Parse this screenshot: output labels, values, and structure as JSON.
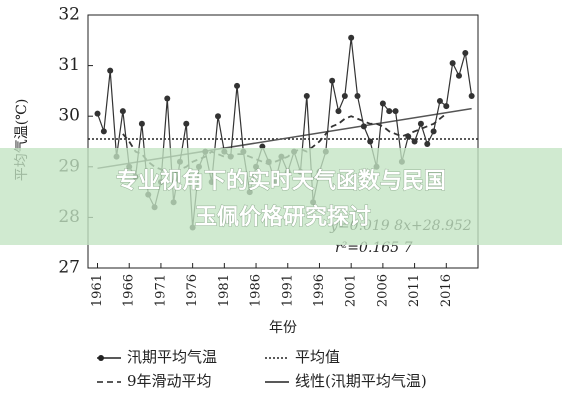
{
  "chart_data": {
    "type": "line",
    "y_label": "平均气温(℃)",
    "x_label": "年份",
    "x": [
      1961,
      1962,
      1963,
      1964,
      1965,
      1966,
      1967,
      1968,
      1969,
      1970,
      1971,
      1972,
      1973,
      1974,
      1975,
      1976,
      1977,
      1978,
      1979,
      1980,
      1981,
      1982,
      1983,
      1984,
      1985,
      1986,
      1987,
      1988,
      1989,
      1990,
      1991,
      1992,
      1993,
      1994,
      1995,
      1996,
      1997,
      1998,
      1999,
      2000,
      2001,
      2002,
      2003,
      2004,
      2005,
      2006,
      2007,
      2008,
      2009,
      2010,
      2011,
      2012,
      2013,
      2014,
      2015,
      2016,
      2017,
      2018,
      2019,
      2020
    ],
    "series": [
      {
        "name": "汛期平均气温",
        "color": "#333333",
        "style": "solid-marker",
        "values": [
          30.05,
          29.7,
          30.9,
          29.2,
          30.1,
          29.0,
          28.8,
          29.85,
          28.45,
          28.2,
          28.7,
          30.35,
          28.3,
          29.1,
          29.85,
          27.8,
          29.0,
          29.3,
          28.7,
          30.0,
          29.3,
          29.2,
          30.6,
          29.3,
          28.5,
          29.0,
          29.4,
          29.1,
          28.7,
          29.2,
          28.9,
          29.3,
          28.9,
          30.4,
          28.3,
          28.9,
          29.3,
          30.7,
          30.1,
          30.4,
          31.55,
          30.4,
          29.8,
          29.5,
          29.0,
          30.25,
          30.1,
          30.1,
          29.1,
          29.6,
          29.5,
          29.85,
          29.45,
          29.7,
          30.3,
          30.2,
          31.05,
          30.8,
          31.25,
          30.4
        ]
      },
      {
        "name": "9年滑动平均",
        "color": "#333333",
        "style": "dashed",
        "values": [
          null,
          null,
          null,
          null,
          29.65,
          29.5,
          29.3,
          29.25,
          29.1,
          29.0,
          28.95,
          28.85,
          28.85,
          28.95,
          29.0,
          29.1,
          29.15,
          29.2,
          29.3,
          29.25,
          29.2,
          29.2,
          29.25,
          29.25,
          29.2,
          29.15,
          29.1,
          29.05,
          29.1,
          29.15,
          29.2,
          29.3,
          29.35,
          29.3,
          29.4,
          29.5,
          29.65,
          29.8,
          29.85,
          29.95,
          30.0,
          29.95,
          29.9,
          29.85,
          29.85,
          29.8,
          29.7,
          29.65,
          29.6,
          29.65,
          29.7,
          29.75,
          29.8,
          29.85,
          29.95,
          30.05,
          null,
          null,
          null,
          null
        ]
      }
    ],
    "mean_line": {
      "name": "平均值",
      "value": 29.55,
      "style": "dotted"
    },
    "trendline": {
      "name": "线性(汛期平均气温)",
      "x": [
        1961,
        2020
      ],
      "values": [
        28.97,
        30.15
      ],
      "style": "solid"
    },
    "annotations": [
      "y=0.019 8x+28.952",
      "r²=0.165 7"
    ],
    "xlim": [
      1959.5,
      2021
    ],
    "xticks": [
      1961,
      1966,
      1971,
      1976,
      1981,
      1986,
      1991,
      1996,
      2001,
      2006,
      2011,
      2016
    ],
    "ylim": [
      27,
      32
    ],
    "yticks": [
      27,
      28,
      29,
      30,
      31,
      32
    ]
  },
  "overlay": {
    "lines": [
      "专业视角下的实时天气函数与民国",
      "玉佩价格研究探讨"
    ]
  }
}
